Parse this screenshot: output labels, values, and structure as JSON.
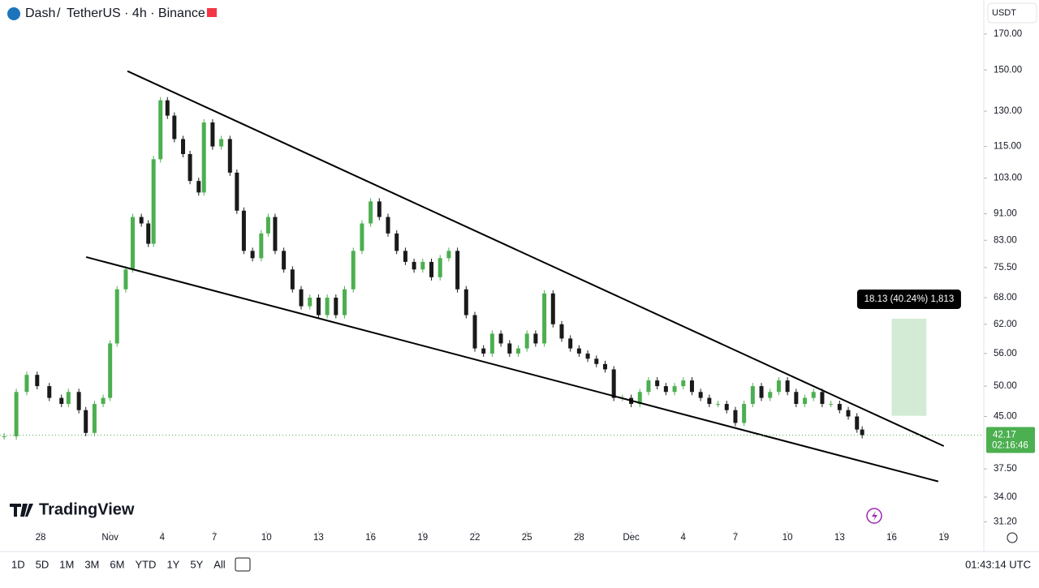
{
  "chart_data": {
    "type": "candlestick",
    "header": {
      "symbol": "Dash",
      "title": "TetherUS · 4h · Binance"
    },
    "currency": "USDT",
    "log_scale": true,
    "xlim": [
      -2.34,
      54.21
    ],
    "ylim": [
      30.2,
      191.3
    ],
    "xticks": [
      {
        "value": 0,
        "label": "28"
      },
      {
        "value": 4,
        "label": "Nov"
      },
      {
        "value": 7,
        "label": "4"
      },
      {
        "value": 10,
        "label": "7"
      },
      {
        "value": 13,
        "label": "10"
      },
      {
        "value": 16,
        "label": "13"
      },
      {
        "value": 19,
        "label": "16"
      },
      {
        "value": 22,
        "label": "19"
      },
      {
        "value": 25,
        "label": "22"
      },
      {
        "value": 28,
        "label": "25"
      },
      {
        "value": 31,
        "label": "28"
      },
      {
        "value": 34,
        "label": "Dec"
      },
      {
        "value": 37,
        "label": "4"
      },
      {
        "value": 40,
        "label": "7"
      },
      {
        "value": 43,
        "label": "10"
      },
      {
        "value": 46,
        "label": "13"
      },
      {
        "value": 49,
        "label": "16"
      },
      {
        "value": 52,
        "label": "19"
      }
    ],
    "yticks": [
      {
        "value": 170,
        "label": "170.00"
      },
      {
        "value": 150,
        "label": "150.00"
      },
      {
        "value": 130,
        "label": "130.00"
      },
      {
        "value": 115,
        "label": "115.00"
      },
      {
        "value": 103,
        "label": "103.00"
      },
      {
        "value": 91,
        "label": "91.00"
      },
      {
        "value": 83,
        "label": "83.00"
      },
      {
        "value": 75.5,
        "label": "75.50"
      },
      {
        "value": 68,
        "label": "68.00"
      },
      {
        "value": 62,
        "label": "62.00"
      },
      {
        "value": 56,
        "label": "56.00"
      },
      {
        "value": 50,
        "label": "50.00"
      },
      {
        "value": 45,
        "label": "45.00"
      },
      {
        "value": 37.5,
        "label": "37.50"
      },
      {
        "value": 34,
        "label": "34.00"
      },
      {
        "value": 31.2,
        "label": "31.20"
      }
    ],
    "up_color": "#4caf50",
    "down_color": "#1a1a1a",
    "series": [
      {
        "x": [
          -2.1,
          -1.4,
          -0.8,
          -0.2,
          0.5,
          1.2,
          1.6,
          2.2,
          2.6,
          3.1,
          3.6,
          4.0,
          4.4,
          4.9,
          5.3,
          5.8,
          6.2,
          6.5,
          6.9,
          7.3,
          7.7,
          8.2,
          8.6,
          9.1,
          9.4,
          9.9,
          10.4,
          10.9,
          11.3,
          11.7,
          12.2,
          12.7,
          13.1,
          13.5,
          14.0,
          14.5,
          15.0,
          15.5,
          16.0,
          16.5,
          17.0,
          17.5,
          18.0,
          18.5,
          19.0,
          19.5,
          20.0,
          20.5,
          21.0,
          21.5,
          22.0,
          22.5,
          23.0,
          23.5,
          24.0,
          24.5,
          25.0,
          25.5,
          26.0,
          26.5,
          27.0,
          27.5,
          28.0,
          28.5,
          29.0,
          29.5,
          30.0,
          30.5,
          31.0,
          31.5,
          32.0,
          32.5,
          33.0,
          33.5,
          34.0,
          34.5,
          35.0,
          35.5,
          36.0,
          36.5,
          37.0,
          37.5,
          38.0,
          38.5,
          39.0,
          39.5,
          40.0,
          40.5,
          41.0,
          41.5,
          42.0,
          42.5,
          43.0,
          43.5,
          44.0,
          44.5,
          45.0,
          45.5,
          46.0,
          46.5,
          47.0,
          47.3
        ],
        "values": [
          42,
          49,
          52,
          50,
          48,
          47,
          49,
          46,
          42.5,
          47,
          48,
          58,
          70,
          75,
          90,
          88,
          82,
          110,
          135,
          128,
          118,
          112,
          102,
          98,
          125,
          115,
          118,
          105,
          92,
          80,
          78,
          85,
          90,
          80,
          75,
          70,
          66,
          68,
          64,
          68,
          64,
          70,
          80,
          88,
          95,
          90,
          85,
          80,
          77,
          75,
          77,
          73,
          78,
          80,
          70,
          64,
          57,
          56,
          60,
          58,
          56,
          57,
          60,
          58,
          69,
          62,
          59,
          57,
          56,
          55,
          54,
          53,
          48,
          48,
          47,
          49,
          51,
          50,
          49,
          50,
          51,
          49,
          48,
          47,
          47,
          46,
          44,
          47,
          50,
          48,
          49,
          51,
          49,
          47,
          48,
          49,
          47,
          47,
          46,
          45,
          43,
          42.17
        ]
      }
    ],
    "trendlines": [
      {
        "x": [
          5.0,
          52.0
        ],
        "y": [
          149.4,
          40.6
        ]
      },
      {
        "x": [
          2.62,
          51.68
        ],
        "y": [
          78.3,
          35.9
        ]
      }
    ],
    "measure": {
      "x": [
        49,
        51
      ],
      "y": [
        45.1,
        63.2
      ],
      "label": "18.13 (40.24%) 1,813"
    },
    "last": {
      "value": 42.17,
      "countdown": "02:16:46"
    },
    "brand": "TradingView",
    "ranges": [
      "1D",
      "5D",
      "1M",
      "3M",
      "6M",
      "YTD",
      "1Y",
      "5Y",
      "All"
    ],
    "clock": "01:43:14 UTC"
  }
}
